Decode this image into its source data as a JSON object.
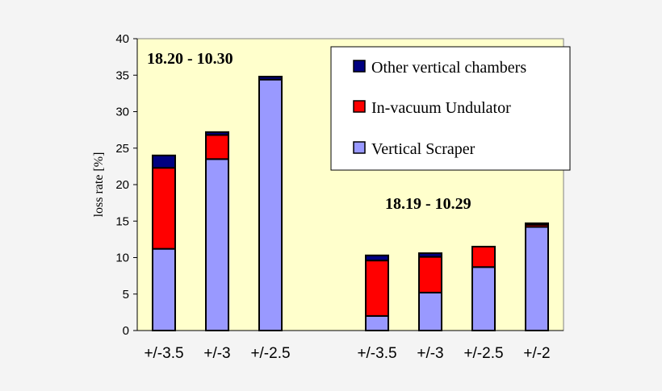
{
  "chart_data": {
    "type": "bar",
    "stacked": true,
    "ylabel": "loss rate [%]",
    "ylim": [
      0,
      40
    ],
    "yticks": [
      0,
      5,
      10,
      15,
      20,
      25,
      30,
      35,
      40
    ],
    "grid": false,
    "legend_position": "top-right",
    "colors": {
      "plot_bg": "#ffffcc",
      "Vertical Scraper": "#9999ff",
      "In-vacuum Undulator": "#ff0000",
      "Other vertical chambers": "#000080"
    },
    "annotations": [
      "18.20 - 10.30",
      "18.19 - 10.29"
    ],
    "groups": [
      {
        "label": "18.20 - 10.30",
        "categories": [
          "+/-3.5",
          "+/-3",
          "+/-2.5"
        ],
        "series": [
          {
            "name": "Vertical Scraper",
            "values": [
              11.2,
              23.5,
              34.4
            ]
          },
          {
            "name": "In-vacuum Undulator",
            "values": [
              11.1,
              3.3,
              0
            ]
          },
          {
            "name": "Other vertical chambers",
            "values": [
              1.7,
              0.4,
              0.4
            ]
          }
        ]
      },
      {
        "label": "18.19 - 10.29",
        "categories": [
          "+/-3.5",
          "+/-3",
          "+/-2.5",
          "+/-2"
        ],
        "series": [
          {
            "name": "Vertical Scraper",
            "values": [
              2.0,
              5.2,
              8.7,
              14.2
            ]
          },
          {
            "name": "In-vacuum Undulator",
            "values": [
              7.6,
              4.9,
              2.8,
              0.3
            ]
          },
          {
            "name": "Other vertical chambers",
            "values": [
              0.7,
              0.5,
              0,
              0.2
            ]
          }
        ]
      }
    ],
    "legend": [
      "Other vertical chambers",
      "In-vacuum Undulator",
      "Vertical Scraper"
    ]
  }
}
